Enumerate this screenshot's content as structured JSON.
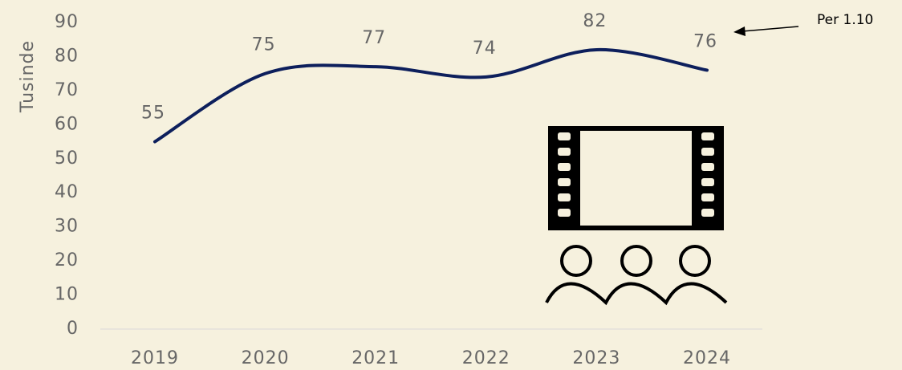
{
  "chart_data": {
    "type": "line",
    "y_label": "Tusinde",
    "annotation": "Per 1.10",
    "categories": [
      "2019",
      "2020",
      "2021",
      "2022",
      "2023",
      "2024"
    ],
    "values": [
      55,
      75,
      77,
      74,
      82,
      76
    ],
    "color": "#0d1f5c",
    "ylim": [
      0,
      90
    ],
    "yticks": [
      0,
      10,
      20,
      30,
      40,
      50,
      60,
      70,
      80,
      90
    ]
  }
}
